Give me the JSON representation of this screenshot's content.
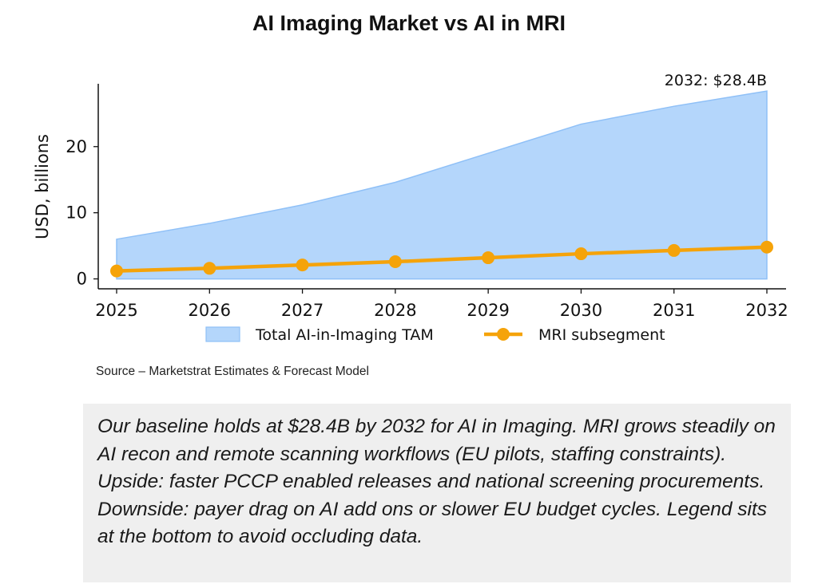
{
  "chart_data": {
    "type": "area",
    "title": "AI Imaging Market vs AI in MRI",
    "xlabel": "",
    "ylabel": "USD, billions",
    "x": [
      2025,
      2026,
      2027,
      2028,
      2029,
      2030,
      2031,
      2032
    ],
    "x_tick_labels": [
      "2025",
      "2026",
      "2027",
      "2028",
      "2029",
      "2030",
      "2031",
      "2032"
    ],
    "y_ticks": [
      0,
      10,
      20
    ],
    "y_tick_labels": [
      "0",
      "10",
      "20"
    ],
    "ylim": [
      -1.5,
      29.5
    ],
    "series": [
      {
        "name": "Total AI-in-Imaging TAM",
        "kind": "area",
        "color": "#b4d6fb",
        "edge_color": "#8fc0f7",
        "values": [
          6.0,
          8.4,
          11.2,
          14.6,
          19.0,
          23.4,
          26.1,
          28.4
        ]
      },
      {
        "name": "MRI subsegment",
        "kind": "line",
        "color": "#f5a30a",
        "values": [
          1.2,
          1.6,
          2.1,
          2.6,
          3.2,
          3.8,
          4.3,
          4.8
        ]
      }
    ],
    "annotation": "2032: $28.4B",
    "legend_position": "bottom"
  },
  "source": "Source – Marketstrat Estimates & Forecast Model",
  "note": "Our baseline holds at $28.4B by 2032 for AI in Imaging. MRI grows steadily on AI recon and remote scanning workflows (EU pilots, staffing constraints). Upside: faster PCCP enabled releases and national screening procurements. Downside: payer drag on AI add ons or slower EU budget cycles. Legend sits at the bottom to avoid occluding data."
}
